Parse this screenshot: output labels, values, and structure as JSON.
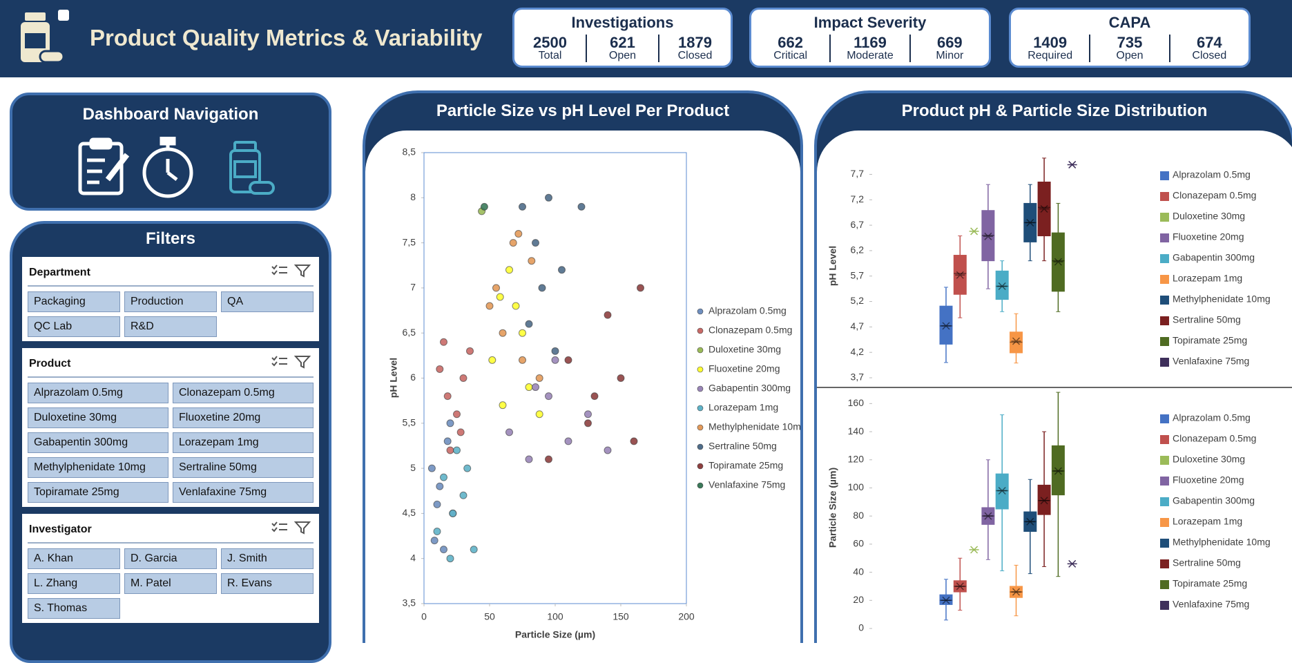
{
  "header": {
    "title": "Product Quality Metrics & Variability",
    "kpis": [
      {
        "title": "Investigations",
        "items": [
          {
            "value": 2500,
            "label": "Total"
          },
          {
            "value": 621,
            "label": "Open"
          },
          {
            "value": 1879,
            "label": "Closed"
          }
        ]
      },
      {
        "title": "Impact Severity",
        "items": [
          {
            "value": 662,
            "label": "Critical"
          },
          {
            "value": 1169,
            "label": "Moderate"
          },
          {
            "value": 669,
            "label": "Minor"
          }
        ]
      },
      {
        "title": "CAPA",
        "items": [
          {
            "value": 1409,
            "label": "Required"
          },
          {
            "value": 735,
            "label": "Open"
          },
          {
            "value": 674,
            "label": "Closed"
          }
        ]
      }
    ]
  },
  "navigation": {
    "title": "Dashboard Navigation"
  },
  "filters": {
    "title": "Filters",
    "slicers": [
      {
        "title": "Department",
        "items": [
          "Packaging",
          "Production",
          "QA",
          "QC Lab",
          "R&D"
        ]
      },
      {
        "title": "Product",
        "items": [
          "Alprazolam 0.5mg",
          "Clonazepam 0.5mg",
          "Duloxetine 30mg",
          "Fluoxetine 20mg",
          "Gabapentin 300mg",
          "Lorazepam 1mg",
          "Methylphenidate 10mg",
          "Sertraline 50mg",
          "Topiramate 25mg",
          "Venlafaxine 75mg"
        ]
      },
      {
        "title": "Investigator",
        "items": [
          "A. Khan",
          "D. Garcia",
          "J. Smith",
          "L. Zhang",
          "M. Patel",
          "R. Evans",
          "S. Thomas"
        ]
      }
    ]
  },
  "chart_data": [
    {
      "type": "scatter",
      "title": "Particle Size vs pH Level Per Product",
      "x_label": "Particle Size (µm)",
      "y_label": "pH Level",
      "xlim": [
        0,
        200
      ],
      "xticks": [
        0,
        50,
        100,
        150,
        200
      ],
      "ylim": [
        3.5,
        8.5
      ],
      "yticks": [
        {
          "value": 3.5,
          "label": "3,5"
        },
        4,
        {
          "value": 4.5,
          "label": "4,5"
        },
        5,
        {
          "value": 5.5,
          "label": "5,5"
        },
        6,
        {
          "value": 6.5,
          "label": "6,5"
        },
        7,
        {
          "value": 7.5,
          "label": "7,5"
        },
        8,
        {
          "value": 8.5,
          "label": "8,5"
        }
      ],
      "series": [
        {
          "name": "Alprazolam 0.5mg",
          "color": "#6f8fbf",
          "x": [
            8,
            12,
            18,
            22,
            6,
            15,
            20,
            10
          ],
          "y": [
            4.2,
            4.8,
            5.3,
            4.5,
            5.0,
            4.1,
            5.5,
            4.6
          ]
        },
        {
          "name": "Clonazepam 0.5mg",
          "color": "#c96a67",
          "x": [
            15,
            25,
            30,
            20,
            35,
            18,
            28,
            12
          ],
          "y": [
            6.4,
            5.6,
            6.0,
            5.2,
            6.3,
            5.8,
            5.4,
            6.1
          ]
        },
        {
          "name": "Duloxetine 30mg",
          "color": "#9bbb59",
          "x": [
            44
          ],
          "y": [
            7.85
          ]
        },
        {
          "name": "Fluoxetine 20mg",
          "color": "#ffff33",
          "x": [
            52,
            60,
            70,
            80,
            65,
            75,
            88,
            58
          ],
          "y": [
            6.2,
            5.7,
            6.8,
            5.9,
            7.2,
            6.5,
            5.6,
            6.9
          ]
        },
        {
          "name": "Gabapentin 300mg",
          "color": "#9a86b8",
          "x": [
            65,
            80,
            95,
            110,
            125,
            140,
            100,
            85
          ],
          "y": [
            5.4,
            5.1,
            5.8,
            5.3,
            5.6,
            5.2,
            6.2,
            5.9
          ]
        },
        {
          "name": "Lorazepam 1mg",
          "color": "#5fb3c8",
          "x": [
            10,
            20,
            30,
            25,
            15,
            38,
            22,
            33
          ],
          "y": [
            4.3,
            4.0,
            4.7,
            5.2,
            4.9,
            4.1,
            4.5,
            5.0
          ]
        },
        {
          "name": "Methylphenidate 10mg",
          "color": "#e39a5a",
          "x": [
            55,
            60,
            68,
            75,
            82,
            50,
            88,
            72
          ],
          "y": [
            7.0,
            6.5,
            7.5,
            6.2,
            7.3,
            6.8,
            6.0,
            7.6
          ]
        },
        {
          "name": "Sertraline 50mg",
          "color": "#4f6d8a",
          "x": [
            75,
            85,
            95,
            105,
            120,
            80,
            100,
            90
          ],
          "y": [
            7.9,
            7.5,
            8.0,
            7.2,
            7.9,
            6.6,
            6.3,
            7.0
          ]
        },
        {
          "name": "Topiramate 25mg",
          "color": "#8e4040",
          "x": [
            95,
            110,
            125,
            140,
            160,
            165,
            130,
            150
          ],
          "y": [
            5.1,
            6.2,
            5.5,
            6.7,
            5.3,
            7.0,
            5.8,
            6.0
          ]
        },
        {
          "name": "Venlafaxine 75mg",
          "color": "#3b7a5a",
          "x": [
            46
          ],
          "y": [
            7.9
          ]
        }
      ]
    },
    {
      "type": "box",
      "title": "Product pH & Particle Size Distribution",
      "y_label": "pH Level",
      "ylim": [
        3.7,
        8.1
      ],
      "yticks": [
        {
          "value": 3.7,
          "label": "3,7"
        },
        {
          "value": 4.2,
          "label": "4,2"
        },
        {
          "value": 4.7,
          "label": "4,7"
        },
        {
          "value": 5.2,
          "label": "5,2"
        },
        {
          "value": 5.7,
          "label": "5,7"
        },
        {
          "value": 6.2,
          "label": "6,2"
        },
        {
          "value": 6.7,
          "label": "6,7"
        },
        {
          "value": 7.2,
          "label": "7,2"
        },
        {
          "value": 7.7,
          "label": "7,7"
        }
      ],
      "series": [
        {
          "name": "Alprazolam 0.5mg",
          "color": "#4472c4",
          "min": 4.0,
          "q1": 4.36,
          "median": 4.72,
          "q3": 5.11,
          "max": 5.48,
          "mean": 4.72
        },
        {
          "name": "Clonazepam 0.5mg",
          "color": "#c0504d",
          "min": 4.88,
          "q1": 5.34,
          "median": 5.75,
          "q3": 6.11,
          "max": 6.49,
          "mean": 5.72
        },
        {
          "name": "Duloxetine 30mg",
          "color": "#9bbb59",
          "mean": 6.58
        },
        {
          "name": "Fluoxetine 20mg",
          "color": "#8064a2",
          "min": 5.45,
          "q1": 6.0,
          "median": 6.5,
          "q3": 6.99,
          "max": 7.5,
          "mean": 6.48
        },
        {
          "name": "Gabapentin 300mg",
          "color": "#4bacc6",
          "min": 5.0,
          "q1": 5.24,
          "median": 5.5,
          "q3": 5.8,
          "max": 6.0,
          "mean": 5.5
        },
        {
          "name": "Lorazepam 1mg",
          "color": "#f79646",
          "min": 3.99,
          "q1": 4.19,
          "median": 4.4,
          "q3": 4.6,
          "max": 4.96,
          "mean": 4.42
        },
        {
          "name": "Methylphenidate 10mg",
          "color": "#1f4e79",
          "min": 6.0,
          "q1": 6.37,
          "median": 6.75,
          "q3": 7.13,
          "max": 7.5,
          "mean": 6.75
        },
        {
          "name": "Sertraline 50mg",
          "color": "#7b2020",
          "min": 6.0,
          "q1": 6.49,
          "median": 7.05,
          "q3": 7.55,
          "max": 8.02,
          "mean": 7.02
        },
        {
          "name": "Topiramate 25mg",
          "color": "#4f6b22",
          "min": 5.0,
          "q1": 5.4,
          "median": 6.0,
          "q3": 6.55,
          "max": 7.13,
          "mean": 5.98
        },
        {
          "name": "Venlafaxine 75mg",
          "color": "#3e2f5b",
          "mean": 7.89
        }
      ]
    },
    {
      "type": "box",
      "y_label": "Particle Size (µm)",
      "ylim": [
        0,
        170
      ],
      "yticks": [
        0,
        20,
        40,
        60,
        80,
        100,
        120,
        140,
        160
      ],
      "series": [
        {
          "name": "Alprazolam 0.5mg",
          "color": "#4472c4",
          "min": 6,
          "q1": 17,
          "median": 20,
          "q3": 24,
          "max": 35,
          "mean": 20
        },
        {
          "name": "Clonazepam 0.5mg",
          "color": "#c0504d",
          "min": 13,
          "q1": 26,
          "median": 30,
          "q3": 34,
          "max": 50,
          "mean": 30
        },
        {
          "name": "Duloxetine 30mg",
          "color": "#9bbb59",
          "mean": 56
        },
        {
          "name": "Fluoxetine 20mg",
          "color": "#8064a2",
          "min": 49,
          "q1": 74,
          "median": 80,
          "q3": 86,
          "max": 120,
          "mean": 80
        },
        {
          "name": "Gabapentin 300mg",
          "color": "#4bacc6",
          "min": 41,
          "q1": 85,
          "median": 98,
          "q3": 110,
          "max": 152,
          "mean": 98
        },
        {
          "name": "Lorazepam 1mg",
          "color": "#f79646",
          "min": 9,
          "q1": 22,
          "median": 26,
          "q3": 30,
          "max": 45,
          "mean": 26
        },
        {
          "name": "Methylphenidate 10mg",
          "color": "#1f4e79",
          "min": 39,
          "q1": 69,
          "median": 76,
          "q3": 83,
          "max": 106,
          "mean": 76
        },
        {
          "name": "Sertraline 50mg",
          "color": "#7b2020",
          "min": 44,
          "q1": 81,
          "median": 91,
          "q3": 102,
          "max": 140,
          "mean": 91
        },
        {
          "name": "Topiramate 25mg",
          "color": "#4f6b22",
          "min": 37,
          "q1": 95,
          "median": 112,
          "q3": 130,
          "max": 168,
          "mean": 112
        },
        {
          "name": "Venlafaxine 75mg",
          "color": "#3e2f5b",
          "mean": 46
        }
      ]
    }
  ]
}
